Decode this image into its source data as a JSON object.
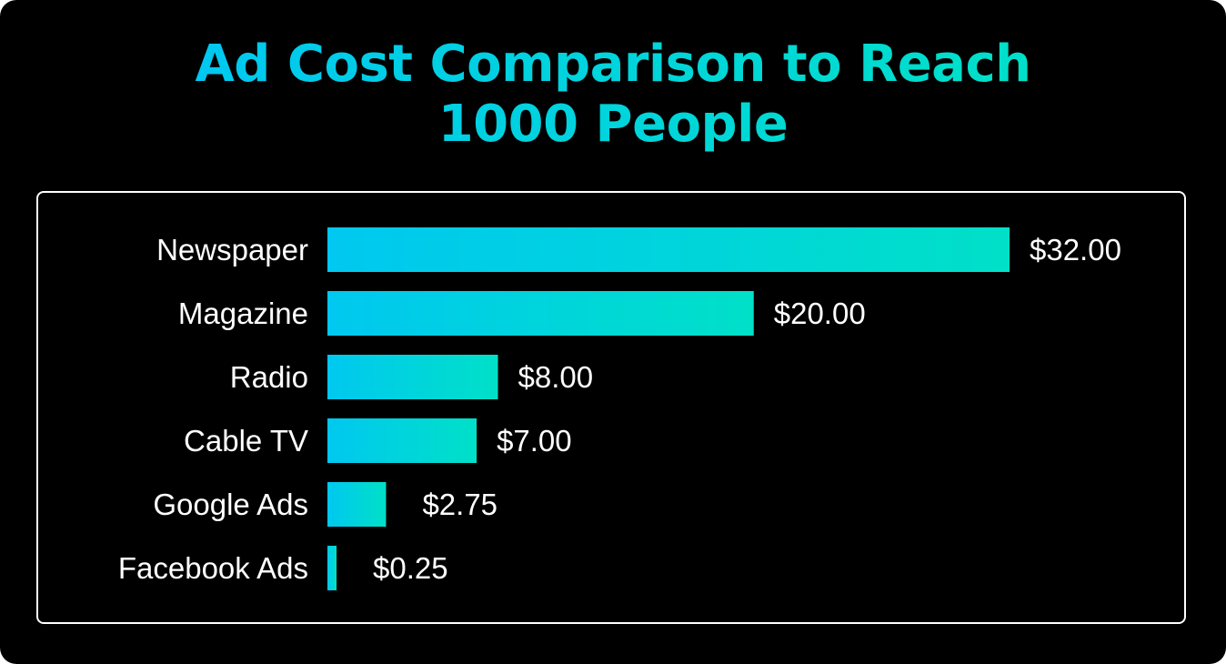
{
  "title_lines": [
    "Ad Cost Comparison to Reach",
    "1000 People"
  ],
  "colors": {
    "background": "#000000",
    "frame": "#ffffff",
    "bar_gradient_start": "#00c8f0",
    "bar_gradient_end": "#00e0c8",
    "text": "#ffffff"
  },
  "chart_data": {
    "type": "bar",
    "orientation": "horizontal",
    "title": "Ad Cost Comparison to Reach 1000 People",
    "categories": [
      "Newspaper",
      "Magazine",
      "Radio",
      "Cable TV",
      "Google Ads",
      "Facebook Ads"
    ],
    "values": [
      32.0,
      20.0,
      8.0,
      7.0,
      2.75,
      0.25
    ],
    "value_labels": [
      "$32.00",
      "$20.00",
      "$8.00",
      "$7.00",
      "$2.75",
      "$0.25"
    ],
    "xlabel": "",
    "ylabel": "",
    "xlim": [
      0,
      32
    ],
    "grid": false,
    "legend": "none"
  }
}
